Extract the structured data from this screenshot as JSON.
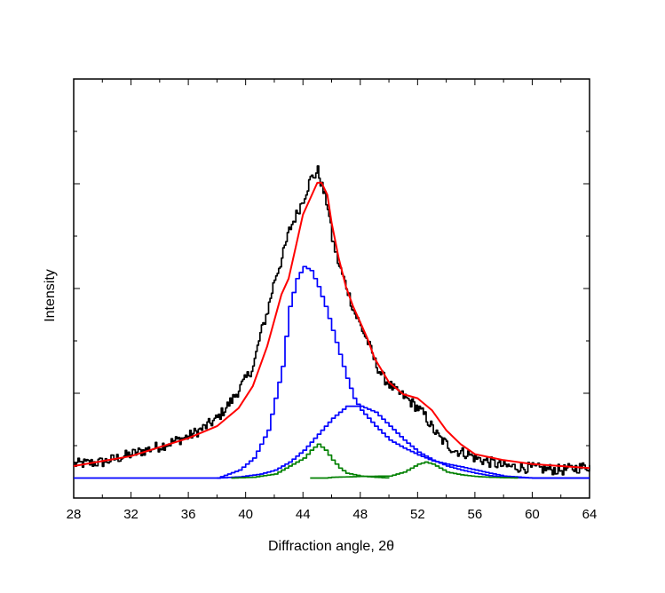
{
  "chart_data": {
    "type": "line",
    "title": "",
    "xlabel": "Diffraction angle, 2θ",
    "ylabel": "Intensity",
    "xlim": [
      28,
      64
    ],
    "ylim": [
      -0.05,
      1.0
    ],
    "xticks": [
      28,
      32,
      36,
      40,
      44,
      48,
      52,
      56,
      60,
      64
    ],
    "xtick_labels": [
      "28",
      "32",
      "36",
      "40",
      "44",
      "48",
      "52",
      "56",
      "60",
      "64"
    ],
    "y_tick_labels_shown": false,
    "grid": false,
    "legend": "none",
    "colors": {
      "observed": "#000000",
      "fit": "#ff0000",
      "component_blue": "#0000ff",
      "component_green": "#008000"
    },
    "series": [
      {
        "color": "#000000",
        "style": "noisy-step",
        "x": [
          28,
          30,
          32,
          34,
          36,
          37,
          38,
          39,
          40,
          40.5,
          41,
          41.5,
          42,
          42.5,
          43,
          43.5,
          44,
          44.5,
          44.8,
          45,
          45.3,
          45.7,
          46,
          46.5,
          47,
          47.5,
          48,
          48.5,
          49,
          49.5,
          50,
          50.5,
          51,
          51.5,
          52,
          52.5,
          53,
          53.5,
          54,
          54.5,
          55,
          55.5,
          56,
          57,
          58,
          60,
          62,
          64
        ],
        "y": [
          0.035,
          0.04,
          0.06,
          0.08,
          0.105,
          0.125,
          0.15,
          0.195,
          0.25,
          0.28,
          0.36,
          0.42,
          0.5,
          0.55,
          0.62,
          0.66,
          0.7,
          0.75,
          0.76,
          0.77,
          0.73,
          0.68,
          0.6,
          0.53,
          0.48,
          0.42,
          0.38,
          0.34,
          0.29,
          0.255,
          0.235,
          0.215,
          0.205,
          0.19,
          0.175,
          0.155,
          0.125,
          0.1,
          0.085,
          0.07,
          0.065,
          0.06,
          0.05,
          0.04,
          0.03,
          0.025,
          0.02,
          0.03
        ]
      },
      {
        "color": "#ff0000",
        "style": "line",
        "x": [
          28,
          32,
          36,
          38,
          39.5,
          40.5,
          41.5,
          42.5,
          43,
          43.5,
          44,
          44.5,
          45,
          45.3,
          45.7,
          46,
          46.5,
          47,
          47.5,
          48,
          48.5,
          49,
          50,
          51,
          52,
          52.5,
          53,
          53.5,
          54,
          55,
          56,
          58,
          60,
          62,
          64
        ],
        "y": [
          0.03,
          0.055,
          0.1,
          0.13,
          0.175,
          0.23,
          0.33,
          0.46,
          0.5,
          0.58,
          0.66,
          0.7,
          0.74,
          0.74,
          0.71,
          0.64,
          0.55,
          0.48,
          0.43,
          0.39,
          0.35,
          0.3,
          0.24,
          0.21,
          0.2,
          0.185,
          0.17,
          0.145,
          0.12,
          0.085,
          0.06,
          0.045,
          0.035,
          0.03,
          0.025
        ]
      },
      {
        "color": "#0000ff",
        "style": "step",
        "x": [
          28,
          36,
          38,
          39.5,
          40.5,
          41.5,
          42.5,
          43,
          43.5,
          44,
          44.5,
          45,
          45.5,
          46,
          46.5,
          47,
          47.5,
          48,
          48.5,
          49,
          50,
          51,
          52,
          53,
          54,
          55,
          56,
          57,
          58,
          60,
          62,
          64
        ],
        "y": [
          0.0,
          0.0,
          0.0,
          0.02,
          0.05,
          0.12,
          0.28,
          0.43,
          0.5,
          0.53,
          0.52,
          0.48,
          0.43,
          0.37,
          0.31,
          0.25,
          0.2,
          0.17,
          0.15,
          0.13,
          0.095,
          0.075,
          0.058,
          0.043,
          0.035,
          0.028,
          0.02,
          0.012,
          0.005,
          0.0,
          0.0,
          0.0
        ]
      },
      {
        "color": "#0000ff",
        "style": "step",
        "x": [
          38,
          39.5,
          41,
          42,
          43,
          44,
          45,
          46,
          47,
          48,
          49,
          50,
          51,
          52,
          53,
          54,
          55,
          56,
          57,
          58,
          60,
          64
        ],
        "y": [
          0.0,
          0.003,
          0.01,
          0.02,
          0.04,
          0.07,
          0.11,
          0.15,
          0.18,
          0.18,
          0.165,
          0.13,
          0.095,
          0.065,
          0.045,
          0.03,
          0.02,
          0.012,
          0.006,
          0.002,
          0.0,
          0.0
        ]
      },
      {
        "color": "#008000",
        "style": "step",
        "x": [
          39,
          40.5,
          42,
          43,
          44,
          44.5,
          45,
          45.5,
          46,
          46.5,
          47,
          48,
          49,
          50
        ],
        "y": [
          0.0,
          0.002,
          0.01,
          0.03,
          0.05,
          0.07,
          0.085,
          0.07,
          0.045,
          0.025,
          0.012,
          0.005,
          0.002,
          0.0
        ]
      },
      {
        "color": "#008000",
        "style": "step",
        "x": [
          44.5,
          45.5,
          46,
          48,
          50,
          51,
          51.5,
          52,
          52.5,
          53,
          53.5,
          54,
          55,
          56,
          57,
          58,
          59
        ],
        "y": [
          0.0,
          0.0,
          0.002,
          0.004,
          0.005,
          0.015,
          0.025,
          0.035,
          0.04,
          0.035,
          0.025,
          0.015,
          0.008,
          0.004,
          0.002,
          0.001,
          0.0
        ]
      }
    ]
  }
}
